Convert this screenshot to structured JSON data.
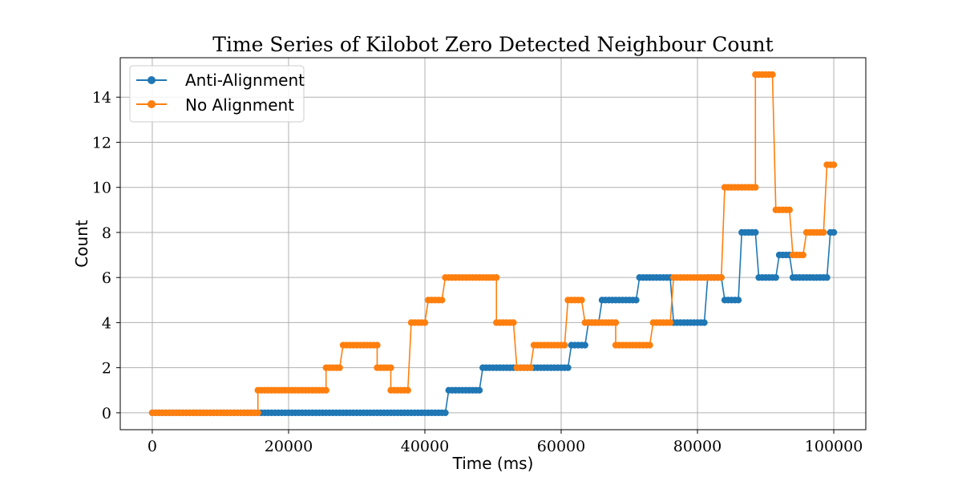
{
  "chart_data": {
    "type": "line",
    "title": "Time Series of Kilobot Zero Detected Neighbour Count",
    "xlabel": "Time (ms)",
    "ylabel": "Count",
    "xlim": [
      -4700,
      104700
    ],
    "ylim": [
      -0.75,
      15.75
    ],
    "xticks": [
      0,
      20000,
      40000,
      60000,
      80000,
      100000
    ],
    "yticks": [
      0,
      2,
      4,
      6,
      8,
      10,
      12,
      14
    ],
    "grid": true,
    "legend_position": "top-left",
    "sample_interval_ms": 500,
    "series": [
      {
        "name": "Anti-Alignment",
        "color": "#1f77b4",
        "marker": "circle",
        "steps": [
          {
            "start": 0,
            "end": 43000,
            "value": 0
          },
          {
            "start": 43500,
            "end": 48000,
            "value": 1
          },
          {
            "start": 48500,
            "end": 61000,
            "value": 2
          },
          {
            "start": 61500,
            "end": 63500,
            "value": 3
          },
          {
            "start": 64000,
            "end": 65500,
            "value": 4
          },
          {
            "start": 66000,
            "end": 71000,
            "value": 5
          },
          {
            "start": 71500,
            "end": 76000,
            "value": 6
          },
          {
            "start": 76500,
            "end": 81000,
            "value": 4
          },
          {
            "start": 81500,
            "end": 83500,
            "value": 6
          },
          {
            "start": 84000,
            "end": 86000,
            "value": 5
          },
          {
            "start": 86500,
            "end": 88500,
            "value": 8
          },
          {
            "start": 89000,
            "end": 91500,
            "value": 6
          },
          {
            "start": 92000,
            "end": 93500,
            "value": 7
          },
          {
            "start": 94000,
            "end": 99000,
            "value": 6
          },
          {
            "start": 99500,
            "end": 100000,
            "value": 8
          }
        ]
      },
      {
        "name": "No Alignment",
        "color": "#ff7f0e",
        "marker": "circle",
        "steps": [
          {
            "start": 0,
            "end": 15500,
            "value": 0
          },
          {
            "start": 15500,
            "end": 25500,
            "value": 1
          },
          {
            "start": 25500,
            "end": 27500,
            "value": 2
          },
          {
            "start": 28000,
            "end": 33000,
            "value": 3
          },
          {
            "start": 33000,
            "end": 35000,
            "value": 2
          },
          {
            "start": 35000,
            "end": 37500,
            "value": 1
          },
          {
            "start": 38000,
            "end": 40000,
            "value": 4
          },
          {
            "start": 40500,
            "end": 42500,
            "value": 5
          },
          {
            "start": 43000,
            "end": 50500,
            "value": 6
          },
          {
            "start": 50500,
            "end": 53000,
            "value": 4
          },
          {
            "start": 53500,
            "end": 55500,
            "value": 2
          },
          {
            "start": 56000,
            "end": 60500,
            "value": 3
          },
          {
            "start": 61000,
            "end": 63000,
            "value": 5
          },
          {
            "start": 63500,
            "end": 68000,
            "value": 4
          },
          {
            "start": 68000,
            "end": 73000,
            "value": 3
          },
          {
            "start": 73500,
            "end": 76000,
            "value": 4
          },
          {
            "start": 76500,
            "end": 83500,
            "value": 6
          },
          {
            "start": 84000,
            "end": 88500,
            "value": 10
          },
          {
            "start": 88500,
            "end": 91000,
            "value": 15
          },
          {
            "start": 91500,
            "end": 93500,
            "value": 9
          },
          {
            "start": 94000,
            "end": 95500,
            "value": 7
          },
          {
            "start": 96000,
            "end": 98500,
            "value": 8
          },
          {
            "start": 99000,
            "end": 100000,
            "value": 11
          }
        ]
      }
    ]
  }
}
